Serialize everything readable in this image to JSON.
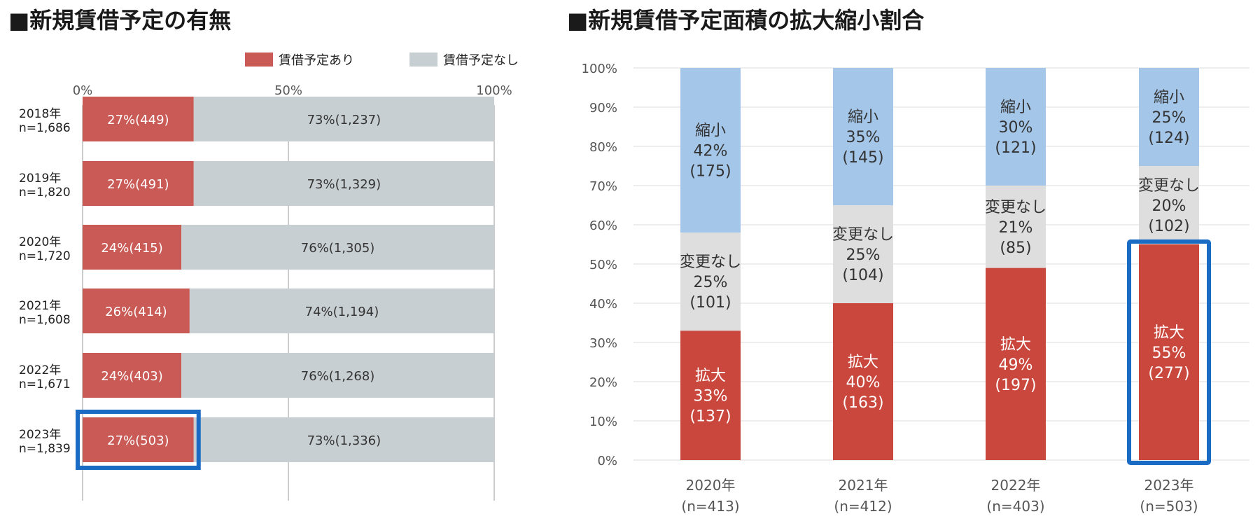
{
  "chart_data": [
    {
      "type": "bar",
      "orientation": "horizontal",
      "stacked": true,
      "title": "■新規賃借予定の有無",
      "xlim": [
        0,
        100
      ],
      "x_ticks": [
        "0%",
        "50%",
        "100%"
      ],
      "legend": {
        "placement": "top-right"
      },
      "categories": [
        {
          "year": "2018年",
          "n": "n=1,686"
        },
        {
          "year": "2019年",
          "n": "n=1,820"
        },
        {
          "year": "2020年",
          "n": "n=1,720"
        },
        {
          "year": "2021年",
          "n": "n=1,608"
        },
        {
          "year": "2022年",
          "n": "n=1,671"
        },
        {
          "year": "2023年",
          "n": "n=1,839"
        }
      ],
      "series": [
        {
          "name": "賃借予定あり",
          "color": "#c95a56",
          "values": [
            27,
            27,
            24,
            26,
            24,
            27
          ],
          "labels": [
            "27%(449)",
            "27%(491)",
            "24%(415)",
            "26%(414)",
            "24%(403)",
            "27%(503)"
          ]
        },
        {
          "name": "賃借予定なし",
          "color": "#c8cfd2",
          "values": [
            73,
            73,
            76,
            74,
            76,
            73
          ],
          "labels": [
            "73%(1,237)",
            "73%(1,329)",
            "76%(1,305)",
            "74%(1,194)",
            "76%(1,268)",
            "73%(1,336)"
          ]
        }
      ],
      "highlight": {
        "category_index": 5,
        "series_index": 0,
        "color": "#1a6bc4"
      }
    },
    {
      "type": "bar",
      "stacked": true,
      "title": "■新規賃借予定面積の拡大縮小割合",
      "ylim": [
        0,
        100
      ],
      "y_ticks": [
        "0%",
        "10%",
        "20%",
        "30%",
        "40%",
        "50%",
        "60%",
        "70%",
        "80%",
        "90%",
        "100%"
      ],
      "categories": [
        {
          "year": "2020年",
          "n": "(n=413)"
        },
        {
          "year": "2021年",
          "n": "(n=412)"
        },
        {
          "year": "2022年",
          "n": "(n=403)"
        },
        {
          "year": "2023年",
          "n": "(n=503)"
        }
      ],
      "series": [
        {
          "name": "拡大",
          "color": "#c9473c",
          "text_color": "#ffffff",
          "values": [
            33,
            40,
            49,
            55
          ],
          "pct": [
            "33%",
            "40%",
            "49%",
            "55%"
          ],
          "counts": [
            "(137)",
            "(163)",
            "(197)",
            "(277)"
          ]
        },
        {
          "name": "変更なし",
          "color": "#dedede",
          "text_color": "#333333",
          "values": [
            25,
            25,
            21,
            20
          ],
          "pct": [
            "25%",
            "25%",
            "21%",
            "20%"
          ],
          "counts": [
            "(101)",
            "(104)",
            "(85)",
            "(102)"
          ]
        },
        {
          "name": "縮小",
          "color": "#a4c6e8",
          "text_color": "#333333",
          "values": [
            42,
            35,
            30,
            25
          ],
          "pct": [
            "42%",
            "35%",
            "30%",
            "25%"
          ],
          "counts": [
            "(175)",
            "(145)",
            "(121)",
            "(124)"
          ]
        }
      ],
      "highlight": {
        "category_index": 3,
        "series_index": 0,
        "color": "#1a6bc4"
      }
    }
  ]
}
